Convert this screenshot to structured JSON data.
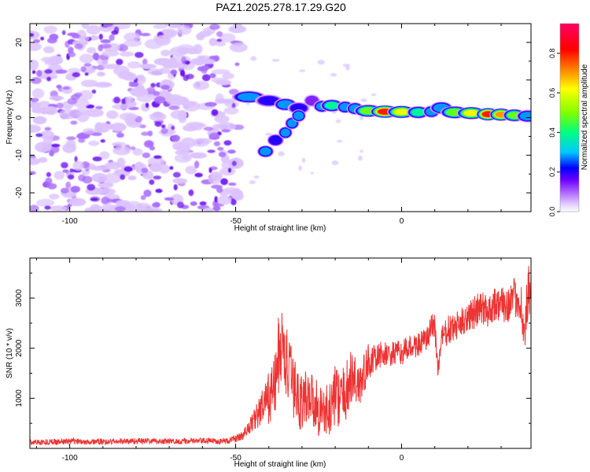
{
  "title": "PAZ1.2025.278.17.29.G20",
  "chart_data": [
    {
      "type": "heatmap",
      "name": "spectrogram",
      "xlabel": "Height of straight line (km)",
      "ylabel": "Frequency (Hz)",
      "xlim": [
        -112,
        39
      ],
      "ylim": [
        -25,
        25
      ],
      "xticks": [
        -100,
        -50,
        0
      ],
      "xtick_labels": [
        "-100",
        "-50",
        "0"
      ],
      "yticks": [
        -20,
        -10,
        0,
        10,
        20
      ],
      "ytick_labels": [
        "-20",
        "-10",
        "0",
        "10",
        "20"
      ],
      "colorbar": {
        "label": "Normalized spectral amplitude",
        "range": [
          0.0,
          0.95
        ],
        "ticks": [
          0.0,
          0.2,
          0.4,
          0.6,
          0.8
        ],
        "tick_labels": [
          "0.0",
          "0.2",
          "0.4",
          "0.6",
          "0.8"
        ],
        "colors": [
          "#ffffff",
          "#e0c8ff",
          "#a050ff",
          "#6000ff",
          "#0000ff",
          "#00c8ff",
          "#00ff80",
          "#80ff00",
          "#ffff00",
          "#ff8000",
          "#ff0000",
          "#ff0060"
        ]
      },
      "noise_region_x": [
        -112,
        -49
      ],
      "features": [
        {
          "x": -46,
          "y": 5.5,
          "v": 0.3
        },
        {
          "x": -40,
          "y": 4.5,
          "v": 0.2
        },
        {
          "x": -35,
          "y": 3.5,
          "v": 0.35
        },
        {
          "x": -31,
          "y": 2.5,
          "v": 0.2
        },
        {
          "x": -27,
          "y": 4.5,
          "v": 0.15
        },
        {
          "x": -24,
          "y": 3.0,
          "v": 0.3
        },
        {
          "x": -21,
          "y": 3.2,
          "v": 0.4
        },
        {
          "x": -17,
          "y": 2.8,
          "v": 0.3
        },
        {
          "x": -14,
          "y": 2.4,
          "v": 0.35
        },
        {
          "x": -41,
          "y": -9.0,
          "v": 0.3
        },
        {
          "x": -38,
          "y": -6.0,
          "v": 0.25
        },
        {
          "x": -35,
          "y": -4.0,
          "v": 0.3
        },
        {
          "x": -33,
          "y": -1.5,
          "v": 0.3
        },
        {
          "x": -31,
          "y": 0.5,
          "v": 0.35
        },
        {
          "x": -10,
          "y": 1.8,
          "v": 0.5
        },
        {
          "x": -5,
          "y": 1.6,
          "v": 0.8
        },
        {
          "x": 0,
          "y": 1.5,
          "v": 0.6
        },
        {
          "x": 5,
          "y": 1.4,
          "v": 0.4
        },
        {
          "x": 9,
          "y": 1.6,
          "v": 0.3
        },
        {
          "x": 12,
          "y": 2.6,
          "v": 0.35
        },
        {
          "x": 16,
          "y": 1.4,
          "v": 0.5
        },
        {
          "x": 21,
          "y": 1.2,
          "v": 0.6
        },
        {
          "x": 26,
          "y": 0.9,
          "v": 0.8
        },
        {
          "x": 30,
          "y": 0.8,
          "v": 0.7
        },
        {
          "x": 34,
          "y": 0.6,
          "v": 0.5
        },
        {
          "x": 38,
          "y": 0.4,
          "v": 0.35
        }
      ]
    },
    {
      "type": "line",
      "name": "snr",
      "xlabel": "Height of straight line (km)",
      "ylabel": "SNR (10 * v/v)",
      "xlim": [
        -112,
        39
      ],
      "ylim": [
        0,
        3800
      ],
      "xticks": [
        -100,
        -50,
        0
      ],
      "xtick_labels": [
        "-100",
        "-50",
        "0"
      ],
      "yticks": [
        1000,
        2000,
        3000
      ],
      "ytick_labels": [
        "1000",
        "2000",
        "3000"
      ],
      "color": "#ee3333",
      "series": [
        {
          "name": "SNR",
          "x": [
            -112,
            -100,
            -90,
            -80,
            -70,
            -60,
            -52,
            -48,
            -46,
            -44,
            -42,
            -40,
            -38,
            -37,
            -36,
            -35,
            -33,
            -30,
            -28,
            -25,
            -22,
            -20,
            -18,
            -15,
            -12,
            -10,
            -8,
            -6,
            -4,
            -2,
            0,
            2,
            4,
            6,
            8,
            9,
            10,
            11,
            12,
            14,
            16,
            18,
            20,
            22,
            24,
            26,
            28,
            30,
            32,
            34,
            36,
            37,
            38,
            39
          ],
          "y": [
            120,
            140,
            130,
            150,
            140,
            150,
            150,
            250,
            420,
            620,
            800,
            1000,
            1300,
            1900,
            2000,
            1800,
            1300,
            900,
            1100,
            800,
            700,
            1100,
            950,
            1400,
            1300,
            1750,
            1750,
            1900,
            1850,
            1900,
            1900,
            2000,
            2050,
            2100,
            2200,
            2400,
            2500,
            1500,
            2200,
            2350,
            2400,
            2500,
            2650,
            2700,
            2800,
            2750,
            2900,
            2850,
            2900,
            3000,
            2950,
            2100,
            3100,
            3000
          ],
          "amp": [
            60,
            60,
            60,
            60,
            60,
            60,
            60,
            90,
            140,
            240,
            380,
            520,
            650,
            850,
            850,
            750,
            650,
            600,
            550,
            550,
            550,
            600,
            600,
            600,
            500,
            350,
            300,
            250,
            250,
            250,
            250,
            250,
            250,
            250,
            250,
            300,
            300,
            250,
            250,
            300,
            300,
            300,
            300,
            350,
            350,
            350,
            350,
            350,
            400,
            400,
            400,
            500,
            600,
            500
          ]
        }
      ]
    }
  ]
}
